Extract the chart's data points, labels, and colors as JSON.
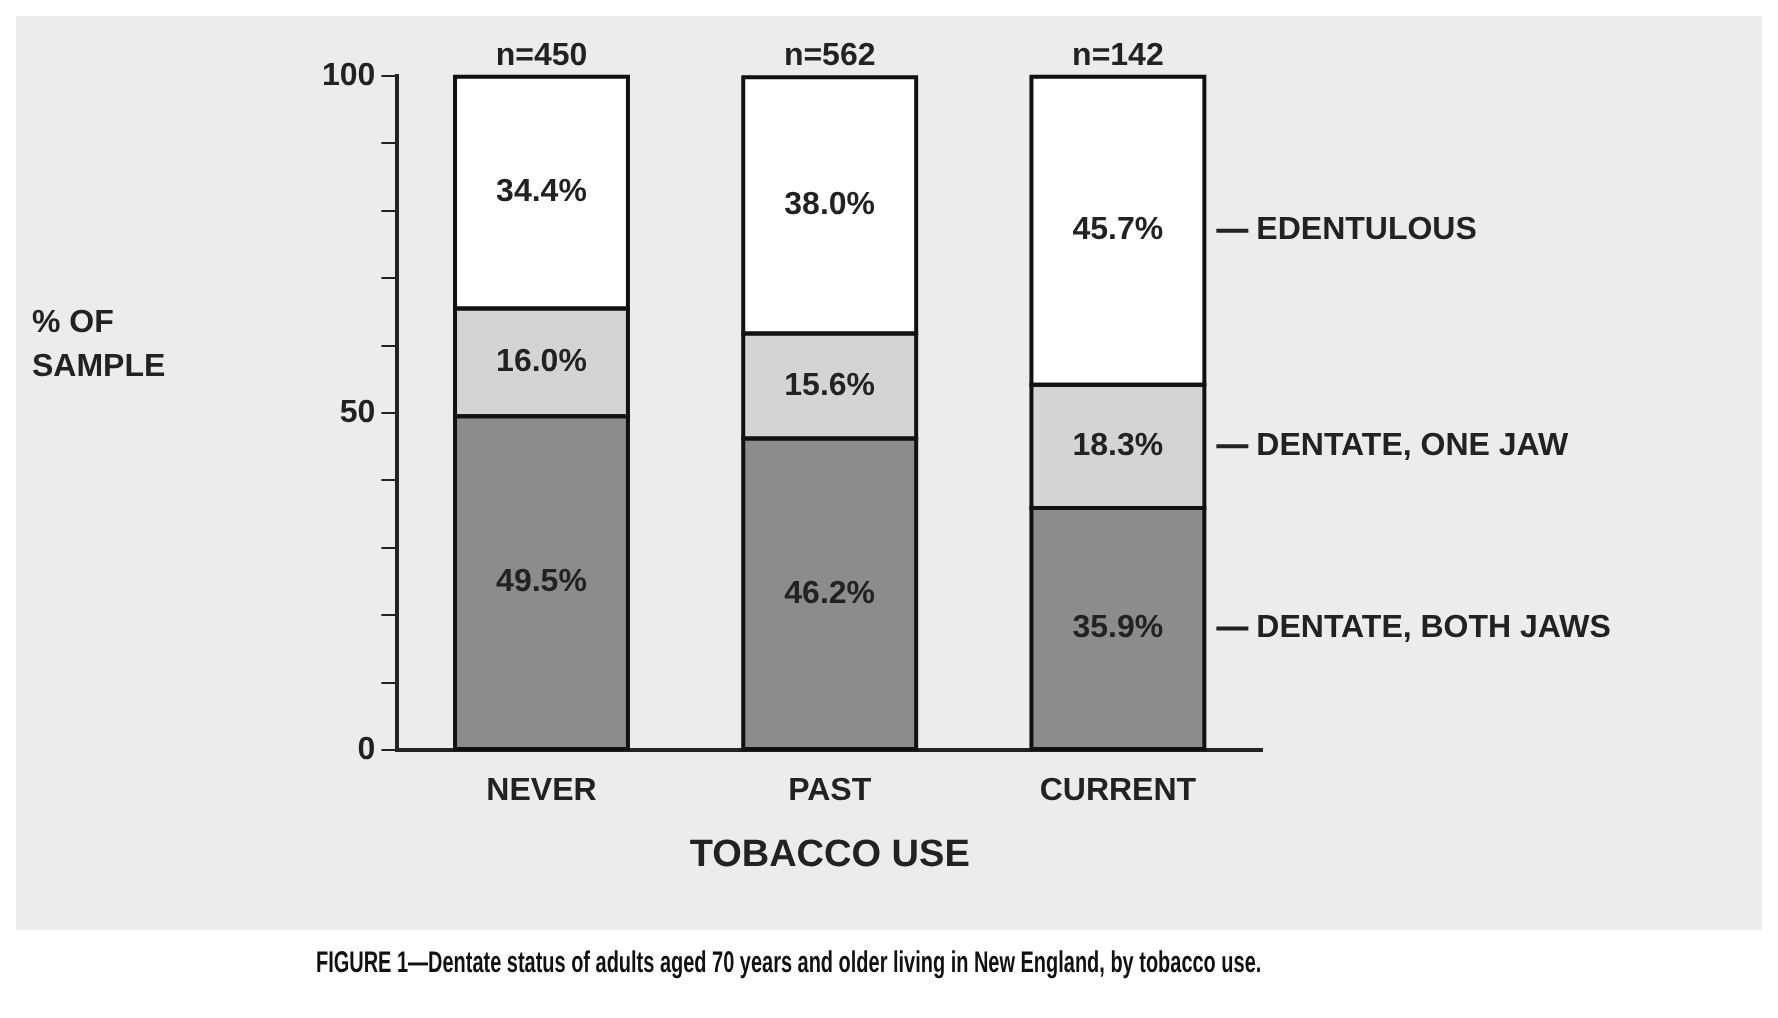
{
  "chart_data": {
    "type": "bar",
    "title": "FIGURE 1—Dentate status of adults aged 70 years and older living in New England, by tobacco use.",
    "xlabel": "TOBACCO USE",
    "ylabel": "% OF SAMPLE",
    "categories": [
      "NEVER",
      "PAST",
      "CURRENT"
    ],
    "stacked": true,
    "series": [
      {
        "name": "DENTATE, BOTH JAWS",
        "color": "#8c8c8c",
        "values": [
          49.5,
          46.2,
          35.9
        ],
        "value_labels": [
          "49.5%",
          "46.2%",
          "35.9%"
        ]
      },
      {
        "name": "DENTATE, ONE JAW",
        "color": "#d4d4d4",
        "values": [
          16.0,
          15.6,
          18.3
        ],
        "value_labels": [
          "16.0%",
          "15.6%",
          "18.3%"
        ]
      },
      {
        "name": "EDENTULOUS",
        "color": "#ffffff",
        "values": [
          34.4,
          38.0,
          45.7
        ],
        "value_labels": [
          "34.4%",
          "38.0%",
          "45.7%"
        ]
      }
    ],
    "ylim": [
      0,
      100
    ],
    "yticks": [
      0,
      {
        "value": 10,
        "label": null
      },
      {
        "value": 20,
        "label": null
      },
      {
        "value": 30,
        "label": null
      },
      {
        "value": 40,
        "label": null
      },
      50,
      {
        "value": 60,
        "label": null
      },
      {
        "value": 70,
        "label": null
      },
      {
        "value": 80,
        "label": null
      },
      {
        "value": 90,
        "label": null
      },
      100
    ],
    "grid": false,
    "legend": "right",
    "annotations": [
      {
        "text": "n=450",
        "x": "NEVER",
        "y": 100
      },
      {
        "text": "n=562",
        "x": "PAST",
        "y": 100
      },
      {
        "text": "n=142",
        "x": "CURRENT",
        "y": 100
      }
    ]
  }
}
